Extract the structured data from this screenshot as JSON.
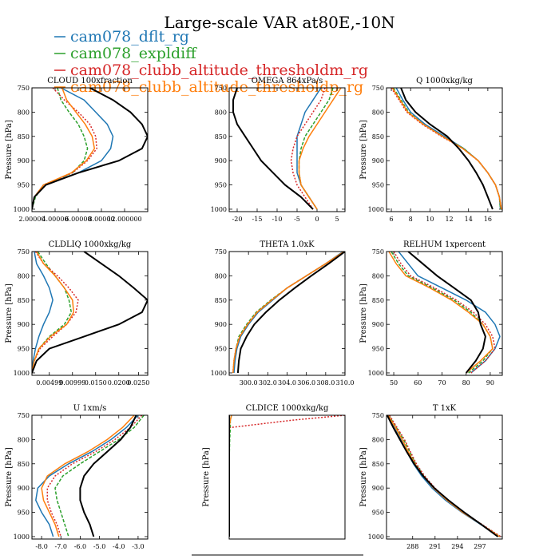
{
  "title": "Large-scale VAR at80E,-10N",
  "legend": [
    {
      "label": "cam078_dflt_rg",
      "color": "#1f77b4"
    },
    {
      "label": "cam078_expldiff",
      "color": "#2ca02c"
    },
    {
      "label": "cam078_clubb_altitude_thresholdm_rg",
      "color": "#d62728"
    },
    {
      "label": "cam078_clubb_altitude_thresholdp_rg",
      "color": "#ff7f0e"
    }
  ],
  "chart_data": [
    {
      "type": "line",
      "title": "CLOUD 100xfraction",
      "ylabel": "Pressure [hPa]",
      "ylim": [
        1005,
        750
      ],
      "y_ticks": [
        750,
        800,
        850,
        900,
        950,
        1000
      ],
      "xlim": [
        0.0,
        1.0
      ],
      "x_ticks": [
        0.0,
        0.2,
        0.4,
        0.6,
        0.8
      ],
      "x_tick_labels": [
        "2.00000",
        "4.00000",
        "6.00000",
        "8.00000",
        "12.000000"
      ],
      "y": [
        750,
        775,
        800,
        825,
        850,
        875,
        900,
        925,
        950,
        975,
        1000
      ],
      "series": [
        {
          "legend": 0,
          "dash": "solid",
          "x": [
            0.25,
            0.45,
            0.55,
            0.65,
            0.7,
            0.68,
            0.6,
            0.4,
            0.1,
            0.02,
            0.0
          ]
        },
        {
          "legend": 1,
          "dash": "4,2",
          "x": [
            0.22,
            0.25,
            0.32,
            0.4,
            0.45,
            0.48,
            0.45,
            0.35,
            0.1,
            0.03,
            0.0
          ]
        },
        {
          "legend": 2,
          "dash": "2,2",
          "x": [
            0.18,
            0.28,
            0.4,
            0.5,
            0.55,
            0.56,
            0.48,
            0.35,
            0.1,
            0.02,
            0.0
          ]
        },
        {
          "legend": 3,
          "dash": "solid",
          "x": [
            0.26,
            0.3,
            0.38,
            0.46,
            0.52,
            0.54,
            0.47,
            0.34,
            0.1,
            0.02,
            0.0
          ]
        },
        {
          "legend": null,
          "color": "#000000",
          "dash": "solid",
          "x": [
            0.5,
            0.7,
            0.85,
            0.95,
            1.0,
            0.95,
            0.75,
            0.4,
            0.12,
            0.02,
            0.0
          ]
        }
      ]
    },
    {
      "type": "line",
      "title": "OMEGA 864xPa/s",
      "ylabel": "",
      "ylim": [
        1005,
        750
      ],
      "y_ticks": [
        750,
        800,
        850,
        900,
        950,
        1000
      ],
      "xlim": [
        -22,
        7
      ],
      "x_ticks": [
        -20,
        -15,
        -10,
        -5,
        0,
        5
      ],
      "x_tick_labels": [
        "-20",
        "-15",
        "-10",
        "-5",
        "0",
        "5"
      ],
      "y": [
        750,
        775,
        800,
        825,
        850,
        875,
        900,
        925,
        950,
        975,
        1000
      ],
      "series": [
        {
          "legend": 0,
          "dash": "solid",
          "x": [
            1,
            -1,
            -3,
            -4,
            -5,
            -5,
            -5,
            -5,
            -4,
            -2,
            0
          ]
        },
        {
          "legend": 1,
          "dash": "4,2",
          "x": [
            4,
            3,
            1,
            -1,
            -3,
            -4,
            -4.5,
            -4.5,
            -4,
            -2,
            0
          ]
        },
        {
          "legend": 2,
          "dash": "2,2",
          "x": [
            2,
            1,
            -1,
            -3,
            -5,
            -6,
            -6.5,
            -6,
            -5,
            -3,
            -1
          ]
        },
        {
          "legend": 3,
          "dash": "solid",
          "x": [
            6,
            4,
            2,
            0,
            -2,
            -3.5,
            -4.5,
            -4.5,
            -4,
            -2,
            0
          ]
        },
        {
          "legend": null,
          "color": "#000000",
          "dash": "solid",
          "x": [
            -20,
            -21,
            -21,
            -20,
            -18,
            -16,
            -14,
            -11,
            -8,
            -4,
            -1
          ]
        }
      ]
    },
    {
      "type": "line",
      "title": "Q 1000xkg/kg",
      "ylabel": "Pressure [hPa]",
      "ylim": [
        1005,
        750
      ],
      "y_ticks": [
        750,
        800,
        850,
        900,
        950,
        1000
      ],
      "xlim": [
        5.5,
        17.5
      ],
      "x_ticks": [
        6,
        8,
        10,
        12,
        14,
        16
      ],
      "x_tick_labels": [
        "6",
        "8",
        "10",
        "12",
        "14",
        "16"
      ],
      "y": [
        750,
        775,
        800,
        825,
        850,
        875,
        900,
        925,
        950,
        975,
        1000
      ],
      "series": [
        {
          "legend": 0,
          "dash": "solid",
          "x": [
            6.5,
            7.2,
            8.0,
            9.5,
            11.5,
            13.5,
            15.0,
            16.0,
            16.8,
            17.2,
            17.3
          ]
        },
        {
          "legend": 1,
          "dash": "4,2",
          "x": [
            6.2,
            7.0,
            7.8,
            9.3,
            11.3,
            13.5,
            15.0,
            16.0,
            16.8,
            17.2,
            17.3
          ]
        },
        {
          "legend": 2,
          "dash": "2,2",
          "x": [
            6.0,
            6.8,
            7.6,
            9.2,
            11.2,
            13.4,
            15.0,
            16.0,
            16.8,
            17.2,
            17.4
          ]
        },
        {
          "legend": 3,
          "dash": "solid",
          "x": [
            6.1,
            6.9,
            7.7,
            9.3,
            11.3,
            13.4,
            15.0,
            16.0,
            16.8,
            17.2,
            17.4
          ]
        },
        {
          "legend": null,
          "color": "#000000",
          "dash": "solid",
          "x": [
            7.0,
            7.5,
            8.5,
            10.0,
            11.8,
            13.0,
            14.0,
            14.8,
            15.5,
            16.0,
            16.5
          ]
        }
      ]
    },
    {
      "type": "line",
      "title": "CLDLIQ 1000xkg/kg",
      "ylabel": "Pressure [hPa]",
      "ylim": [
        1005,
        750
      ],
      "y_ticks": [
        750,
        800,
        850,
        900,
        950,
        1000
      ],
      "xlim": [
        0.0,
        1.0
      ],
      "x_ticks": [
        0.15,
        0.35,
        0.55,
        0.75,
        0.92
      ],
      "x_tick_labels": [
        "0.00499",
        "0.00999",
        "0.0150",
        "0.0200",
        "0.0250"
      ],
      "y": [
        750,
        775,
        800,
        825,
        850,
        875,
        900,
        925,
        950,
        975,
        1000
      ],
      "series": [
        {
          "legend": 0,
          "dash": "solid",
          "x": [
            0.02,
            0.04,
            0.1,
            0.15,
            0.18,
            0.15,
            0.1,
            0.06,
            0.03,
            0.01,
            0.0
          ]
        },
        {
          "legend": 1,
          "dash": "4,2",
          "x": [
            0.05,
            0.12,
            0.2,
            0.28,
            0.32,
            0.34,
            0.28,
            0.15,
            0.06,
            0.02,
            0.0
          ]
        },
        {
          "legend": 2,
          "dash": "2,2",
          "x": [
            0.03,
            0.1,
            0.22,
            0.32,
            0.4,
            0.38,
            0.3,
            0.18,
            0.07,
            0.02,
            0.0
          ]
        },
        {
          "legend": 3,
          "dash": "solid",
          "x": [
            0.04,
            0.1,
            0.2,
            0.28,
            0.35,
            0.36,
            0.3,
            0.16,
            0.06,
            0.02,
            0.0
          ]
        },
        {
          "legend": null,
          "color": "#000000",
          "dash": "solid",
          "x": [
            0.45,
            0.6,
            0.75,
            0.88,
            1.0,
            0.95,
            0.75,
            0.45,
            0.15,
            0.04,
            0.0
          ]
        }
      ]
    },
    {
      "type": "line",
      "title": "THETA 1.0xK",
      "ylabel": "",
      "ylim": [
        1005,
        750
      ],
      "y_ticks": [
        750,
        800,
        850,
        900,
        950,
        1000
      ],
      "xlim": [
        298.0,
        310.0
      ],
      "x_ticks": [
        300.0,
        302.0,
        304.0,
        306.0,
        308.0,
        310.0
      ],
      "x_tick_labels": [
        "300.0",
        "302.0",
        "304.0",
        "306.0",
        "308.0",
        "310.0"
      ],
      "y": [
        750,
        775,
        800,
        825,
        850,
        875,
        900,
        925,
        950,
        975,
        1000
      ],
      "series": [
        {
          "legend": 0,
          "dash": "solid",
          "x": [
            309.8,
            308.0,
            306.0,
            304.0,
            302.5,
            301.0,
            300.0,
            299.2,
            298.8,
            298.6,
            298.5
          ]
        },
        {
          "legend": 1,
          "dash": "4,2",
          "x": [
            309.9,
            308.0,
            306.0,
            304.0,
            302.3,
            300.8,
            299.8,
            299.0,
            298.7,
            298.5,
            298.4
          ]
        },
        {
          "legend": 2,
          "dash": "2,2",
          "x": [
            309.9,
            308.0,
            306.0,
            304.0,
            302.4,
            300.9,
            299.9,
            299.1,
            298.7,
            298.5,
            298.4
          ]
        },
        {
          "legend": 3,
          "dash": "solid",
          "x": [
            309.9,
            308.0,
            306.0,
            304.0,
            302.4,
            300.9,
            299.9,
            299.1,
            298.7,
            298.5,
            298.4
          ]
        },
        {
          "legend": null,
          "color": "#000000",
          "dash": "solid",
          "x": [
            310.0,
            308.3,
            306.5,
            304.8,
            303.2,
            301.8,
            300.6,
            299.8,
            299.2,
            299.0,
            298.9
          ]
        }
      ]
    },
    {
      "type": "line",
      "title": "RELHUM 1xpercent",
      "ylabel": "Pressure [hPa]",
      "ylim": [
        1005,
        750
      ],
      "y_ticks": [
        750,
        800,
        850,
        900,
        950,
        1000
      ],
      "xlim": [
        47,
        95
      ],
      "x_ticks": [
        50,
        60,
        70,
        80,
        90
      ],
      "x_tick_labels": [
        "50",
        "60",
        "70",
        "80",
        "90"
      ],
      "y": [
        750,
        775,
        800,
        825,
        850,
        875,
        900,
        925,
        950,
        975,
        1000
      ],
      "series": [
        {
          "legend": 0,
          "dash": "solid",
          "x": [
            52,
            56,
            60,
            70,
            80,
            88,
            92,
            94,
            92,
            88,
            82
          ]
        },
        {
          "legend": 1,
          "dash": "4,2",
          "x": [
            49,
            52,
            56,
            66,
            75,
            82,
            87,
            90,
            91,
            87,
            81
          ]
        },
        {
          "legend": 2,
          "dash": "2,2",
          "x": [
            50,
            53,
            57,
            67,
            76,
            83,
            88,
            91,
            92,
            88,
            82
          ]
        },
        {
          "legend": 3,
          "dash": "solid",
          "x": [
            48,
            51,
            55,
            65,
            74,
            81,
            87,
            90,
            91,
            86,
            80
          ]
        },
        {
          "legend": null,
          "color": "#000000",
          "dash": "solid",
          "x": [
            56,
            62,
            68,
            75,
            82,
            85,
            86,
            88,
            87,
            84,
            80
          ]
        }
      ]
    },
    {
      "type": "line",
      "title": "U 1xm/s",
      "ylabel": "Pressure [hPa]",
      "ylim": [
        1005,
        750
      ],
      "y_ticks": [
        750,
        800,
        850,
        900,
        950,
        1000
      ],
      "xlim": [
        -8.5,
        -2.5
      ],
      "x_ticks": [
        -8.0,
        -7.0,
        -6.0,
        -5.0,
        -4.0,
        -3.0
      ],
      "x_tick_labels": [
        "-8.0",
        "-7.0",
        "-6.0",
        "-5.0",
        "-4.0",
        "-3.0"
      ],
      "y": [
        750,
        775,
        800,
        825,
        850,
        875,
        900,
        925,
        950,
        975,
        1000
      ],
      "series": [
        {
          "legend": 0,
          "dash": "solid",
          "x": [
            -3.0,
            -3.6,
            -4.4,
            -5.4,
            -6.6,
            -7.6,
            -8.2,
            -8.3,
            -8.0,
            -7.6,
            -7.4
          ]
        },
        {
          "legend": 1,
          "dash": "4,2",
          "x": [
            -2.7,
            -3.2,
            -4.0,
            -5.0,
            -6.0,
            -6.9,
            -7.3,
            -7.2,
            -7.0,
            -6.8,
            -6.6
          ]
        },
        {
          "legend": 2,
          "dash": "2,2",
          "x": [
            -2.8,
            -3.4,
            -4.2,
            -5.2,
            -6.4,
            -7.3,
            -7.7,
            -7.7,
            -7.5,
            -7.2,
            -7.0
          ]
        },
        {
          "legend": 3,
          "dash": "solid",
          "x": [
            -3.2,
            -3.8,
            -4.6,
            -5.6,
            -6.8,
            -7.7,
            -8.0,
            -7.9,
            -7.6,
            -7.3,
            -7.1
          ]
        },
        {
          "legend": null,
          "color": "#000000",
          "dash": "solid",
          "x": [
            -3.1,
            -3.4,
            -3.9,
            -4.6,
            -5.3,
            -5.8,
            -6.0,
            -6.0,
            -5.8,
            -5.5,
            -5.3
          ]
        }
      ]
    },
    {
      "type": "line",
      "title": "CLDICE 1000xkg/kg",
      "ylabel": "Pressure [hPa]",
      "ylim": [
        1005,
        750
      ],
      "y_ticks": [],
      "x_ticks": [],
      "x_tick_labels": [],
      "xlim": [
        0.0,
        1.0
      ],
      "y": [
        750,
        760,
        775,
        776,
        800,
        850,
        900,
        950,
        1000
      ],
      "series": [
        {
          "legend": 0,
          "dash": "solid",
          "x": [
            0.02,
            0.01,
            0.0,
            0.0,
            0.0,
            0.0,
            0.0,
            0.0,
            0.0
          ]
        },
        {
          "legend": 1,
          "dash": "4,2",
          "x": [
            0.02,
            0.01,
            0.01,
            0.01,
            0.005,
            0.0,
            0.0,
            0.0,
            0.0
          ]
        },
        {
          "legend": 2,
          "dash": "2,2",
          "x": [
            1.0,
            0.55,
            0.02,
            0.0,
            0.0,
            0.0,
            0.0,
            0.0,
            0.0
          ]
        },
        {
          "legend": 3,
          "dash": "solid",
          "x": [
            0.02,
            0.01,
            0.0,
            0.0,
            0.0,
            0.0,
            0.0,
            0.0,
            0.0
          ]
        },
        {
          "legend": null,
          "color": "#000000",
          "dash": "solid",
          "x": [
            0.0,
            0.0,
            0.0,
            0.0,
            0.0,
            0.0,
            0.0,
            0.0,
            0.0
          ]
        }
      ]
    },
    {
      "type": "line",
      "title": "T 1xK",
      "ylabel": "Pressure [hPa]",
      "ylim": [
        1005,
        750
      ],
      "y_ticks": [
        750,
        800,
        850,
        900,
        950,
        1000
      ],
      "xlim": [
        284.5,
        300.0
      ],
      "x_ticks": [
        288,
        291,
        294,
        297
      ],
      "x_tick_labels": [
        "288",
        "291",
        "294",
        "297"
      ],
      "y": [
        750,
        775,
        800,
        825,
        850,
        875,
        900,
        925,
        950,
        975,
        1000
      ],
      "series": [
        {
          "legend": 0,
          "dash": "solid",
          "x": [
            284.6,
            285.5,
            286.4,
            287.2,
            288.1,
            289.2,
            290.6,
            292.4,
            294.6,
            297.1,
            299.5
          ]
        },
        {
          "legend": 1,
          "dash": "4,2",
          "x": [
            284.8,
            285.8,
            286.8,
            287.6,
            288.4,
            289.5,
            290.9,
            292.6,
            294.8,
            297.2,
            299.7
          ]
        },
        {
          "legend": 2,
          "dash": "2,2",
          "x": [
            284.9,
            285.9,
            286.9,
            287.7,
            288.5,
            289.6,
            291.0,
            292.7,
            294.8,
            297.3,
            299.8
          ]
        },
        {
          "legend": 3,
          "dash": "solid",
          "x": [
            284.7,
            285.7,
            286.6,
            287.4,
            288.3,
            289.4,
            290.8,
            292.6,
            294.7,
            297.2,
            299.6
          ]
        },
        {
          "legend": null,
          "color": "#000000",
          "dash": "solid",
          "x": [
            284.6,
            285.4,
            286.3,
            287.2,
            288.2,
            289.4,
            290.9,
            292.8,
            294.9,
            297.2,
            299.4
          ]
        }
      ]
    }
  ]
}
